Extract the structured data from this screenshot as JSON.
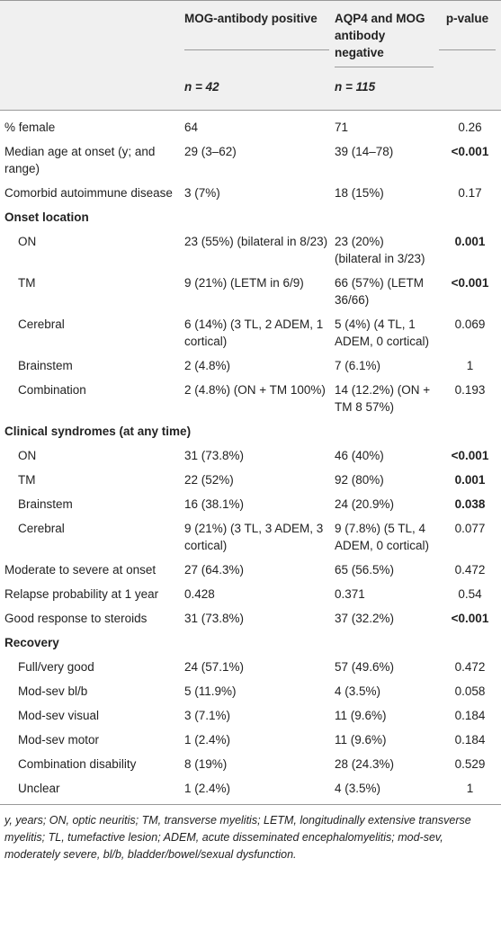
{
  "table": {
    "columns": [
      "MOG-antibody positive",
      "AQP4 and MOG antibody negative",
      "p-value"
    ],
    "n": [
      "n = 42",
      "n = 115"
    ],
    "rows": [
      {
        "label": "% female",
        "values": [
          "64",
          "71",
          "0.26"
        ]
      },
      {
        "label": "Median age at onset (y; and range)",
        "values": [
          "29 (3–62)",
          "39 (14–78)",
          "<0.001"
        ],
        "p_bold": true
      },
      {
        "label": "Comorbid autoimmune disease",
        "values": [
          "3 (7%)",
          "18 (15%)",
          "0.17"
        ]
      },
      {
        "section": "Onset location",
        "rows": [
          {
            "label": "ON",
            "values": [
              "23 (55%) (bilateral in 8/23)",
              "23 (20%) (bilateral in 3/23)",
              "0.001"
            ],
            "p_bold": true
          },
          {
            "label": "TM",
            "values": [
              "9 (21%) (LETM in 6/9)",
              "66 (57%) (LETM 36/66)",
              "<0.001"
            ],
            "p_bold": true
          },
          {
            "label": "Cerebral",
            "values": [
              "6 (14%) (3 TL, 2 ADEM, 1 cortical)",
              "5 (4%) (4 TL, 1 ADEM, 0 cortical)",
              "0.069"
            ]
          },
          {
            "label": "Brainstem",
            "values": [
              "2 (4.8%)",
              "7 (6.1%)",
              "1"
            ]
          },
          {
            "label": "Combination",
            "values": [
              "2 (4.8%) (ON + TM 100%)",
              "14 (12.2%) (ON + TM 8 57%)",
              "0.193"
            ]
          }
        ]
      },
      {
        "section": "Clinical syndromes (at any time)",
        "rows": [
          {
            "label": "ON",
            "values": [
              "31 (73.8%)",
              "46 (40%)",
              "<0.001"
            ],
            "p_bold": true
          },
          {
            "label": "TM",
            "values": [
              "22 (52%)",
              "92 (80%)",
              "0.001"
            ],
            "p_bold": true
          },
          {
            "label": "Brainstem",
            "values": [
              "16 (38.1%)",
              "24 (20.9%)",
              "0.038"
            ],
            "p_bold": true
          },
          {
            "label": "Cerebral",
            "values": [
              "9 (21%) (3 TL, 3 ADEM, 3 cortical)",
              "9 (7.8%) (5 TL, 4 ADEM, 0 cortical)",
              "0.077"
            ]
          }
        ]
      },
      {
        "label": "Moderate to severe at onset",
        "values": [
          "27 (64.3%)",
          "65 (56.5%)",
          "0.472"
        ]
      },
      {
        "label": "Relapse probability at 1 year",
        "values": [
          "0.428",
          "0.371",
          "0.54"
        ]
      },
      {
        "label": "Good response to steroids",
        "values": [
          "31 (73.8%)",
          "37 (32.2%)",
          "<0.001"
        ],
        "p_bold": true
      },
      {
        "section": "Recovery",
        "rows": [
          {
            "label": "Full/very good",
            "values": [
              "24 (57.1%)",
              "57 (49.6%)",
              "0.472"
            ]
          },
          {
            "label": "Mod-sev bl/b",
            "values": [
              "5 (11.9%)",
              "4 (3.5%)",
              "0.058"
            ]
          },
          {
            "label": "Mod-sev visual",
            "values": [
              "3 (7.1%)",
              "11 (9.6%)",
              "0.184"
            ]
          },
          {
            "label": "Mod-sev motor",
            "values": [
              "1 (2.4%)",
              "11 (9.6%)",
              "0.184"
            ]
          },
          {
            "label": "Combination disability",
            "values": [
              "8 (19%)",
              "28 (24.3%)",
              "0.529"
            ]
          },
          {
            "label": "Unclear",
            "values": [
              "1 (2.4%)",
              "4 (3.5%)",
              "1"
            ]
          }
        ]
      }
    ],
    "footnote": "y, years; ON, optic neuritis; TM, transverse myelitis; LETM, longitudinally extensive transverse myelitis; TL, tumefactive lesion; ADEM, acute disseminated encephalomyelitis; mod-sev, moderately severe, bl/b, bladder/bowel/sexual dysfunction."
  }
}
